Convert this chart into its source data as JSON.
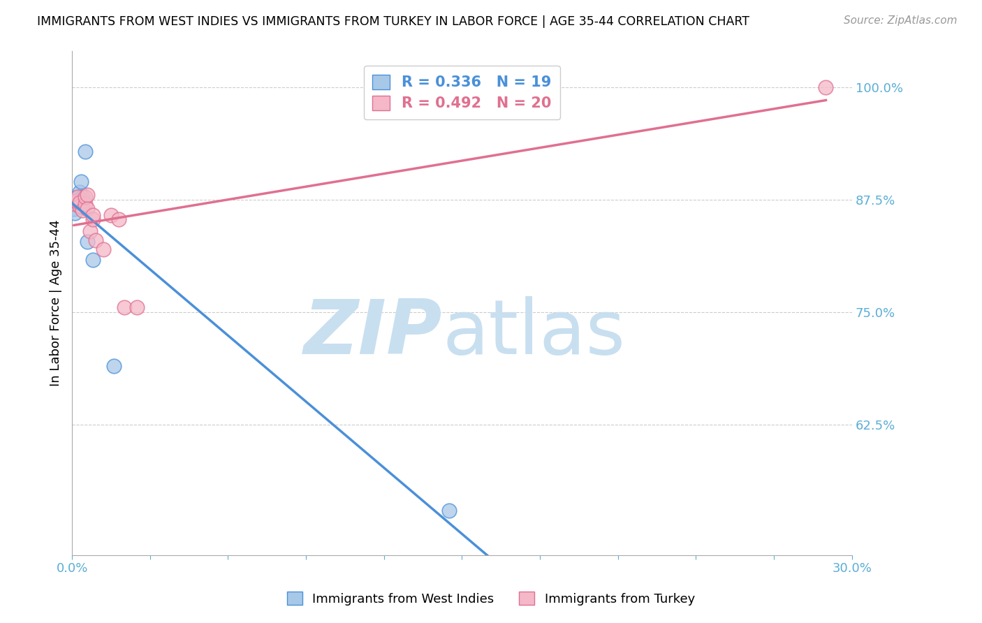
{
  "title": "IMMIGRANTS FROM WEST INDIES VS IMMIGRANTS FROM TURKEY IN LABOR FORCE | AGE 35-44 CORRELATION CHART",
  "source": "Source: ZipAtlas.com",
  "ylabel": "In Labor Force | Age 35-44",
  "xlim": [
    0.0,
    0.3
  ],
  "ylim": [
    0.48,
    1.04
  ],
  "west_indies_x": [
    0.0008,
    0.001,
    0.0015,
    0.0018,
    0.002,
    0.002,
    0.0025,
    0.0025,
    0.003,
    0.003,
    0.003,
    0.0035,
    0.004,
    0.004,
    0.005,
    0.006,
    0.008,
    0.016,
    0.145
  ],
  "west_indies_y": [
    0.865,
    0.86,
    0.873,
    0.877,
    0.87,
    0.878,
    0.87,
    0.878,
    0.868,
    0.876,
    0.883,
    0.895,
    0.878,
    0.868,
    0.928,
    0.828,
    0.808,
    0.69,
    0.53
  ],
  "turkey_x": [
    0.001,
    0.0015,
    0.002,
    0.003,
    0.003,
    0.004,
    0.005,
    0.005,
    0.006,
    0.006,
    0.007,
    0.008,
    0.008,
    0.009,
    0.012,
    0.015,
    0.018,
    0.02,
    0.025,
    0.29
  ],
  "turkey_y": [
    0.87,
    0.873,
    0.878,
    0.868,
    0.872,
    0.863,
    0.87,
    0.878,
    0.88,
    0.865,
    0.84,
    0.853,
    0.858,
    0.83,
    0.82,
    0.858,
    0.853,
    0.755,
    0.755,
    1.0
  ],
  "R_west_indies": 0.336,
  "N_west_indies": 19,
  "R_turkey": 0.492,
  "N_turkey": 20,
  "blue_color": "#a8c8e8",
  "pink_color": "#f4b8c8",
  "blue_line_color": "#4a90d9",
  "pink_line_color": "#e07090",
  "axis_color": "#5baed6",
  "tick_color": "#5baed6",
  "background_color": "#ffffff",
  "watermark_zip_color": "#c8dff0",
  "watermark_atlas_color": "#c8dff0",
  "grid_color": "#cccccc"
}
